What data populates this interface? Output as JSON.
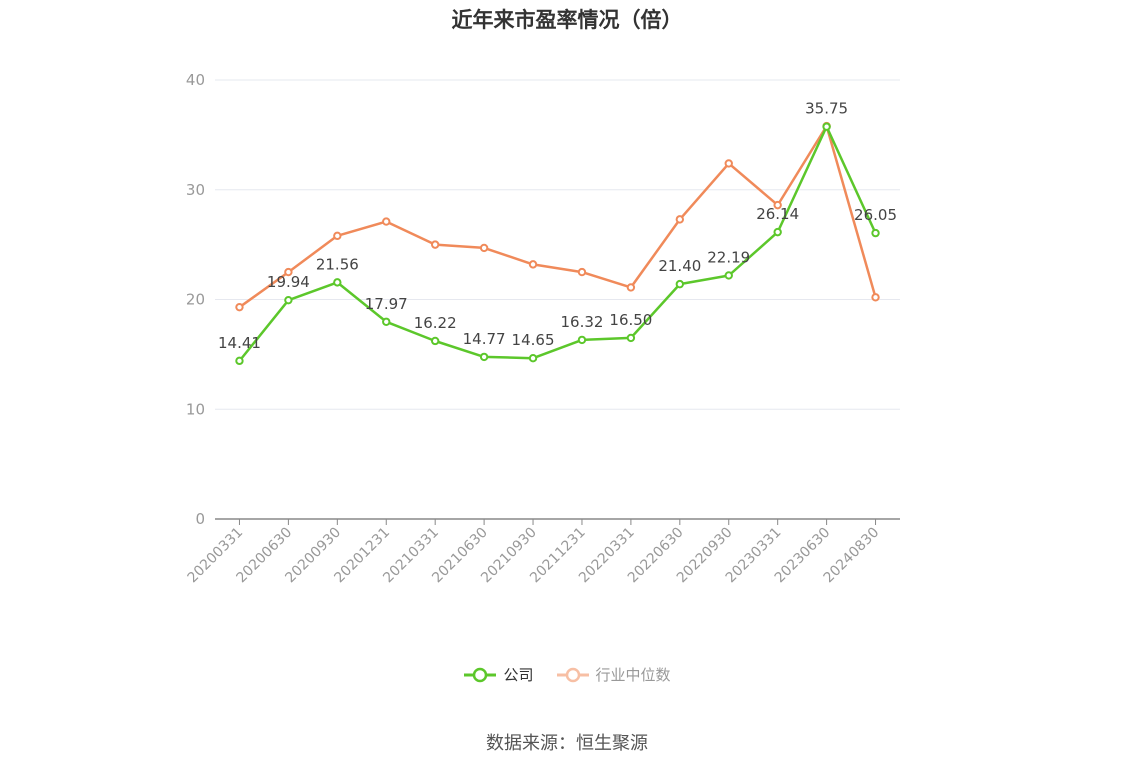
{
  "chart_data": {
    "type": "line",
    "title": "近年来市盈率情况（倍）",
    "categories": [
      "20200331",
      "20200630",
      "20200930",
      "20201231",
      "20210331",
      "20210630",
      "20210930",
      "20211231",
      "20220331",
      "20220630",
      "20220930",
      "20230331",
      "20230630",
      "20240830"
    ],
    "series": [
      {
        "name": "公司",
        "color": "#5cc72b",
        "values": [
          14.41,
          19.94,
          21.56,
          17.97,
          16.22,
          14.77,
          14.65,
          16.32,
          16.5,
          21.4,
          22.19,
          26.14,
          35.75,
          26.05
        ],
        "labels": [
          "14.41",
          "19.94",
          "21.56",
          "17.97",
          "16.22",
          "14.77",
          "14.65",
          "16.32",
          "16.50",
          "21.40",
          "22.19",
          "26.14",
          "35.75",
          "26.05"
        ]
      },
      {
        "name": "行业中位数",
        "color": "#f08a5a",
        "values": [
          19.3,
          22.5,
          25.8,
          27.1,
          25.0,
          24.7,
          23.2,
          22.5,
          21.1,
          27.3,
          32.4,
          28.6,
          35.8,
          20.2
        ]
      }
    ],
    "ylim": [
      0,
      40
    ],
    "yticks": [
      0,
      10,
      20,
      30,
      40
    ],
    "grid": true,
    "legend_position": "bottom"
  },
  "source": "数据来源：恒生聚源"
}
